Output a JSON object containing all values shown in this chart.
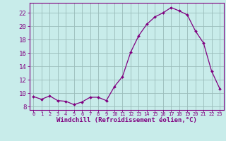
{
  "x": [
    0,
    1,
    2,
    3,
    4,
    5,
    6,
    7,
    8,
    9,
    10,
    11,
    12,
    13,
    14,
    15,
    16,
    17,
    18,
    19,
    20,
    21,
    22,
    23
  ],
  "y": [
    9.5,
    9.1,
    9.6,
    8.9,
    8.8,
    8.3,
    8.7,
    9.4,
    9.4,
    8.9,
    11.0,
    12.5,
    16.1,
    18.6,
    20.3,
    21.4,
    22.0,
    22.8,
    22.3,
    21.7,
    19.3,
    17.5,
    13.3,
    10.7
  ],
  "line_color": "#800080",
  "marker": "D",
  "marker_size": 2,
  "bg_color": "#c8ecea",
  "grid_color": "#9abcba",
  "tick_color": "#800080",
  "label_color": "#800080",
  "xlabel": "Windchill (Refroidissement éolien,°C)",
  "ylim": [
    7.5,
    23.5
  ],
  "xlim": [
    -0.5,
    23.5
  ],
  "yticks": [
    8,
    10,
    12,
    14,
    16,
    18,
    20,
    22
  ],
  "xticks": [
    0,
    1,
    2,
    3,
    4,
    5,
    6,
    7,
    8,
    9,
    10,
    11,
    12,
    13,
    14,
    15,
    16,
    17,
    18,
    19,
    20,
    21,
    22,
    23
  ],
  "xlabel_fontsize": 6.5,
  "xtick_fontsize": 5.0,
  "ytick_fontsize": 6.5
}
